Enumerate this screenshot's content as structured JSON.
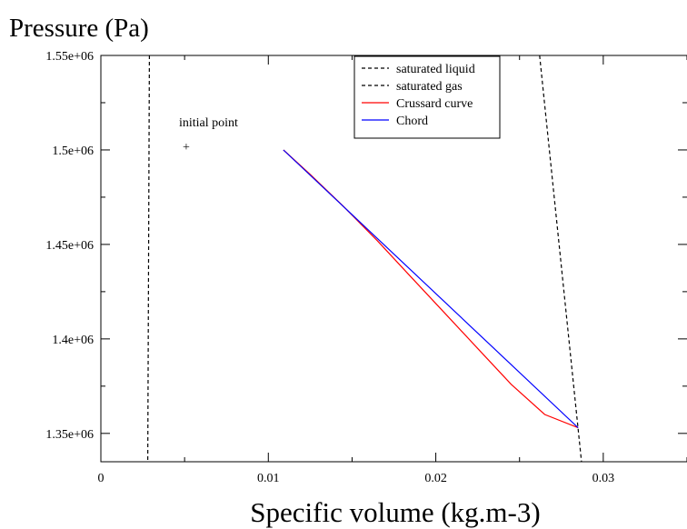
{
  "chart_data": {
    "type": "line",
    "ylabel": "Pressure (Pa)",
    "xlabel": "Specific volume (kg.m-3)",
    "xlim": [
      0,
      0.035
    ],
    "ylim": [
      1335000,
      1550000
    ],
    "x_ticks": [
      {
        "value": 0,
        "label": "0"
      },
      {
        "value": 0.01,
        "label": "0.01"
      },
      {
        "value": 0.02,
        "label": "0.02"
      },
      {
        "value": 0.03,
        "label": "0.03"
      }
    ],
    "y_ticks": [
      {
        "value": 1350000,
        "label": "1.35e+06"
      },
      {
        "value": 1400000,
        "label": "1.4e+06"
      },
      {
        "value": 1450000,
        "label": "1.45e+06"
      },
      {
        "value": 1500000,
        "label": "1.5e+06"
      },
      {
        "value": 1550000,
        "label": "1.55e+06"
      }
    ],
    "grid": false,
    "legend_position": "top-center",
    "series": [
      {
        "name": "saturated liquid",
        "color": "#000000",
        "style": "dashed",
        "points": [
          [
            0.0029,
            1550000
          ],
          [
            0.0028,
            1335000
          ]
        ]
      },
      {
        "name": "saturated gas",
        "color": "#000000",
        "style": "dashed",
        "points": [
          [
            0.0262,
            1550000
          ],
          [
            0.0287,
            1335000
          ]
        ]
      },
      {
        "name": "Crussard curve",
        "color": "#ff0000",
        "style": "solid",
        "points": [
          [
            0.0109,
            1500000
          ],
          [
            0.0125,
            1487000
          ],
          [
            0.0145,
            1470000
          ],
          [
            0.0165,
            1452000
          ],
          [
            0.0185,
            1433000
          ],
          [
            0.0205,
            1414000
          ],
          [
            0.0225,
            1395000
          ],
          [
            0.0245,
            1376000
          ],
          [
            0.0265,
            1360000
          ],
          [
            0.0285,
            1353000
          ]
        ]
      },
      {
        "name": "Chord",
        "color": "#0000ff",
        "style": "solid",
        "points": [
          [
            0.0109,
            1500000
          ],
          [
            0.0285,
            1353000
          ]
        ]
      }
    ],
    "annotations": [
      {
        "text": "initial point",
        "marker": "+",
        "x": 0.0051,
        "y": 1502000
      }
    ]
  }
}
